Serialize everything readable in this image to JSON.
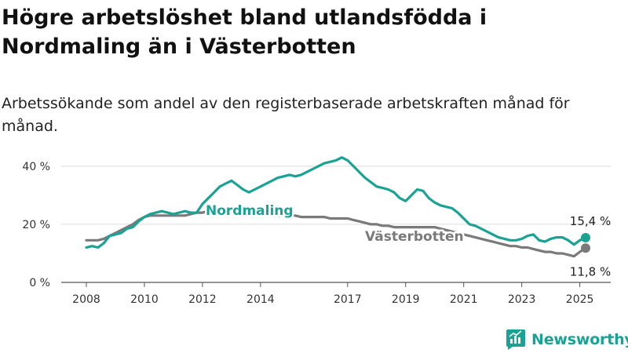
{
  "header": {
    "title": "Högre arbetslöshet bland utlandsfödda i Nordmaling än i Västerbotten",
    "subtitle": "Arbetssökande som andel av den registerbaserade arbetskraften månad för månad."
  },
  "brand": {
    "name": "Newsworthy",
    "color": "#1aa394",
    "icon": "chart-logo-icon"
  },
  "chart_data": {
    "type": "line",
    "title": "Högre arbetslöshet bland utlandsfödda i Nordmaling än i Västerbotten",
    "subtitle": "Arbetssökande som andel av den registerbaserade arbetskraften månad för månad.",
    "xlabel": "",
    "ylabel": "",
    "x_ticks": [
      "2008",
      "2010",
      "2012",
      "2014",
      "2017",
      "2019",
      "2021",
      "2023",
      "2025"
    ],
    "x_tick_years": [
      2008,
      2010,
      2012,
      2014,
      2017,
      2019,
      2021,
      2023,
      2025
    ],
    "y_ticks": [
      "0 %",
      "20 %",
      "40 %"
    ],
    "y_tick_values": [
      0,
      20,
      40
    ],
    "xlim": [
      2008.0,
      2025.2
    ],
    "ylim": [
      0,
      44
    ],
    "grid": true,
    "legend": "inline labels",
    "series": [
      {
        "name": "Nordmaling",
        "color": "#1aa394",
        "label": "Nordmaling",
        "end_label": "15,4 %",
        "x": [
          2008.0,
          2008.2,
          2008.4,
          2008.6,
          2008.8,
          2009.0,
          2009.2,
          2009.4,
          2009.6,
          2009.8,
          2010.0,
          2010.2,
          2010.4,
          2010.6,
          2010.8,
          2011.0,
          2011.2,
          2011.4,
          2011.6,
          2011.8,
          2012.0,
          2012.2,
          2012.4,
          2012.6,
          2012.8,
          2013.0,
          2013.2,
          2013.4,
          2013.6,
          2013.8,
          2014.0,
          2014.2,
          2014.4,
          2014.6,
          2014.8,
          2015.0,
          2015.2,
          2015.4,
          2015.6,
          2015.8,
          2016.0,
          2016.2,
          2016.4,
          2016.6,
          2016.8,
          2017.0,
          2017.2,
          2017.4,
          2017.6,
          2017.8,
          2018.0,
          2018.2,
          2018.4,
          2018.6,
          2018.8,
          2019.0,
          2019.2,
          2019.4,
          2019.6,
          2019.8,
          2020.0,
          2020.2,
          2020.4,
          2020.6,
          2020.8,
          2021.0,
          2021.2,
          2021.4,
          2021.6,
          2021.8,
          2022.0,
          2022.2,
          2022.4,
          2022.6,
          2022.8,
          2023.0,
          2023.2,
          2023.4,
          2023.6,
          2023.8,
          2024.0,
          2024.2,
          2024.4,
          2024.6,
          2024.8,
          2025.0,
          2025.2
        ],
        "y": [
          12,
          12.5,
          12,
          13.5,
          16,
          16.5,
          17,
          18.5,
          19,
          21,
          22.5,
          23.5,
          24,
          24.5,
          24,
          23.5,
          24,
          24.5,
          24,
          24,
          27,
          29,
          31,
          33,
          34,
          35,
          33.5,
          32,
          31,
          32,
          33,
          34,
          35,
          36,
          36.5,
          37,
          36.5,
          37,
          38,
          39,
          40,
          41,
          41.5,
          42,
          43,
          42,
          40,
          38,
          36,
          34.5,
          33,
          32.5,
          32,
          31,
          29,
          28,
          30,
          32,
          31.5,
          29,
          27.5,
          26.5,
          26,
          25.5,
          24,
          22,
          20,
          19.5,
          18.5,
          17.5,
          16.5,
          15.5,
          15,
          14.5,
          14.5,
          15,
          16,
          16.5,
          14.5,
          14,
          15,
          15.5,
          15.5,
          14.5,
          13,
          14.5,
          15.4
        ]
      },
      {
        "name": "Västerbotten",
        "color": "#7a7a7a",
        "label": "Västerbotten",
        "end_label": "11,8 %",
        "x": [
          2008.0,
          2008.2,
          2008.4,
          2008.6,
          2008.8,
          2009.0,
          2009.2,
          2009.4,
          2009.6,
          2009.8,
          2010.0,
          2010.2,
          2010.4,
          2010.6,
          2010.8,
          2011.0,
          2011.2,
          2011.4,
          2011.6,
          2011.8,
          2012.0,
          2012.2,
          2012.4,
          2012.6,
          2012.8,
          2013.0,
          2013.2,
          2013.4,
          2013.6,
          2013.8,
          2014.0,
          2014.2,
          2014.4,
          2014.6,
          2014.8,
          2015.0,
          2015.2,
          2015.4,
          2015.6,
          2015.8,
          2016.0,
          2016.2,
          2016.4,
          2016.6,
          2016.8,
          2017.0,
          2017.2,
          2017.4,
          2017.6,
          2017.8,
          2018.0,
          2018.2,
          2018.4,
          2018.6,
          2018.8,
          2019.0,
          2019.2,
          2019.4,
          2019.6,
          2019.8,
          2020.0,
          2020.2,
          2020.4,
          2020.6,
          2020.8,
          2021.0,
          2021.2,
          2021.4,
          2021.6,
          2021.8,
          2022.0,
          2022.2,
          2022.4,
          2022.6,
          2022.8,
          2023.0,
          2023.2,
          2023.4,
          2023.6,
          2023.8,
          2024.0,
          2024.2,
          2024.4,
          2024.6,
          2024.8,
          2025.0,
          2025.2
        ],
        "y": [
          14.5,
          14.5,
          14.5,
          15,
          16,
          17,
          18,
          19,
          20,
          21.5,
          22.5,
          23,
          23,
          23,
          23,
          23,
          23,
          23,
          23.5,
          24,
          24,
          24.5,
          24.5,
          24.5,
          24.5,
          24.5,
          24,
          24,
          23.5,
          23.5,
          23.5,
          23.5,
          23,
          23,
          23,
          23,
          23,
          22.5,
          22.5,
          22.5,
          22.5,
          22.5,
          22,
          22,
          22,
          22,
          21.5,
          21,
          20.5,
          20,
          20,
          19.5,
          19.5,
          19,
          19,
          19,
          19,
          19,
          19,
          19,
          19,
          18.5,
          18,
          17.5,
          17,
          16.5,
          16,
          15.5,
          15,
          14.5,
          14,
          13.5,
          13,
          12.5,
          12.5,
          12,
          12,
          11.5,
          11,
          10.5,
          10.5,
          10,
          10,
          9.5,
          9,
          10.5,
          11.8
        ]
      }
    ]
  }
}
